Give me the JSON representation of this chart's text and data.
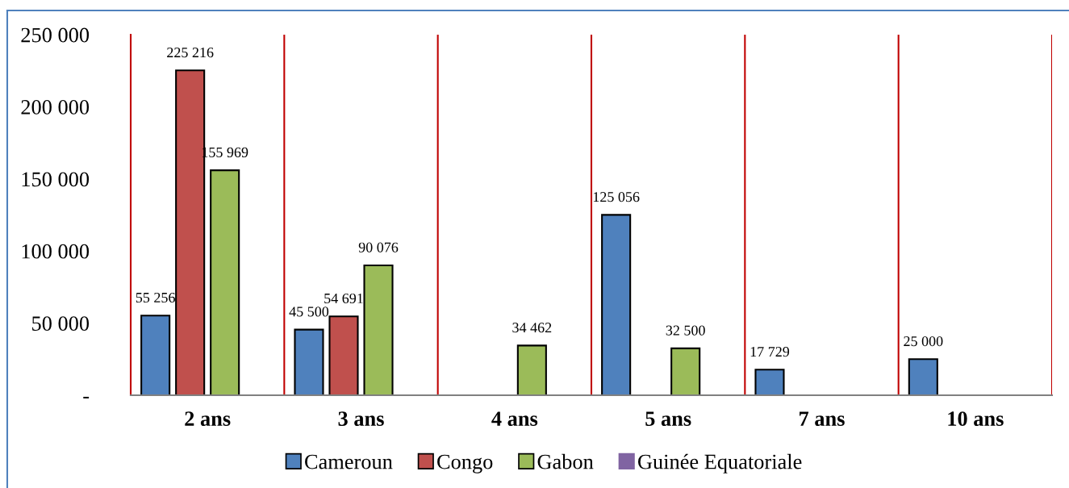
{
  "chart_data": {
    "type": "bar",
    "categories": [
      "2 ans",
      "3 ans",
      "4 ans",
      "5 ans",
      "7 ans",
      "10 ans"
    ],
    "series": [
      {
        "name": "Cameroun",
        "color": "#4f81bd",
        "values": [
          55256,
          45500,
          null,
          125056,
          17729,
          25000
        ],
        "value_labels": [
          "55 256",
          "45 500",
          null,
          "125 056",
          "17 729",
          "25 000"
        ]
      },
      {
        "name": "Congo",
        "color": "#c0504d",
        "values": [
          225216,
          54691,
          null,
          null,
          null,
          null
        ],
        "value_labels": [
          "225 216",
          "54 691",
          null,
          null,
          null,
          null
        ]
      },
      {
        "name": "Gabon",
        "color": "#9bbb59",
        "values": [
          155969,
          90076,
          34462,
          32500,
          null,
          null
        ],
        "value_labels": [
          "155 969",
          "90 076",
          "34 462",
          "32 500",
          null,
          null
        ]
      },
      {
        "name": "Guinée Equatoriale",
        "color": "#8064a2",
        "values": [
          null,
          null,
          null,
          null,
          null,
          null
        ]
      }
    ],
    "ylim": [
      0,
      250000
    ],
    "yticks": [
      {
        "value": 0,
        "label": "-"
      },
      {
        "value": 50000,
        "label": "50 000"
      },
      {
        "value": 100000,
        "label": "100 000"
      },
      {
        "value": 150000,
        "label": "150 000"
      },
      {
        "value": 200000,
        "label": "200 000"
      },
      {
        "value": 250000,
        "label": "250 000"
      }
    ],
    "grid": "x",
    "legend": "bottom"
  }
}
